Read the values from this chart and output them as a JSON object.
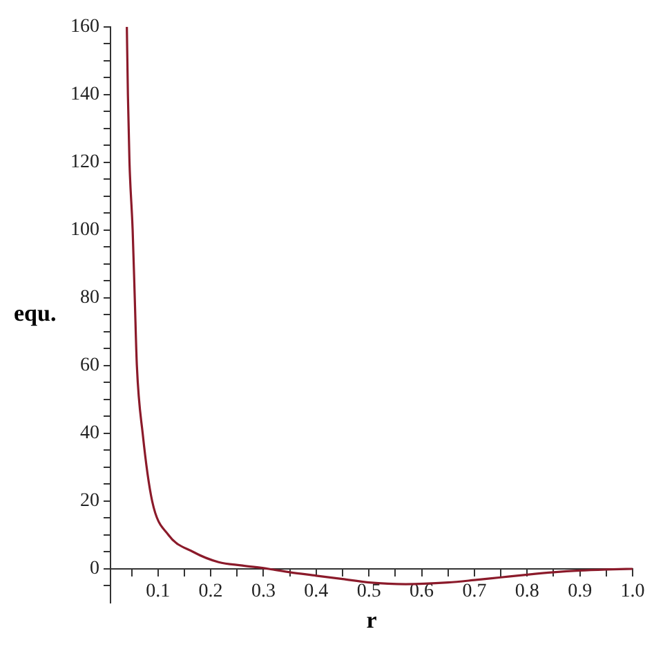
{
  "chart_data": {
    "type": "line",
    "xlabel": "r",
    "ylabel": "equ.",
    "x": [
      0.041,
      0.043,
      0.046,
      0.052,
      0.056,
      0.06,
      0.071,
      0.089,
      0.12,
      0.167,
      0.215,
      0.26,
      0.31,
      0.35,
      0.4,
      0.45,
      0.5,
      0.57,
      0.65,
      0.7,
      0.75,
      0.8,
      0.85,
      0.9,
      0.95,
      1.0
    ],
    "series": [
      {
        "color": "#8b1a2a",
        "values": [
          160,
          140,
          120,
          100,
          80,
          60,
          40,
          20,
          10,
          5,
          2,
          1,
          0,
          -1,
          -2,
          -3,
          -4,
          -4.5,
          -4,
          -3.3,
          -2.5,
          -1.7,
          -1,
          -0.5,
          -0.2,
          0
        ]
      }
    ],
    "xlim": [
      0.01,
      1.0
    ],
    "ylim": [
      -10,
      160
    ],
    "xticks": [
      0.1,
      0.2,
      0.3,
      0.4,
      0.5,
      0.6,
      0.7,
      0.8,
      0.9,
      {
        "value": 1.0,
        "label": "1.0"
      },
      {
        "value": 0.05,
        "label": null
      },
      {
        "value": 0.15,
        "label": null
      },
      {
        "value": 0.25,
        "label": null
      },
      {
        "value": 0.35,
        "label": null
      },
      {
        "value": 0.45,
        "label": null
      },
      {
        "value": 0.55,
        "label": null
      },
      {
        "value": 0.65,
        "label": null
      },
      {
        "value": 0.75,
        "label": null
      },
      {
        "value": 0.85,
        "label": null
      },
      {
        "value": 0.95,
        "label": null
      }
    ],
    "yticks": [
      0,
      20,
      40,
      60,
      80,
      100,
      120,
      140,
      160,
      {
        "value": -5,
        "label": null
      },
      {
        "value": 5,
        "label": null
      },
      {
        "value": 10,
        "label": null
      },
      {
        "value": 15,
        "label": null
      },
      {
        "value": 25,
        "label": null
      },
      {
        "value": 30,
        "label": null
      },
      {
        "value": 35,
        "label": null
      },
      {
        "value": 45,
        "label": null
      },
      {
        "value": 50,
        "label": null
      },
      {
        "value": 55,
        "label": null
      },
      {
        "value": 65,
        "label": null
      },
      {
        "value": 70,
        "label": null
      },
      {
        "value": 75,
        "label": null
      },
      {
        "value": 85,
        "label": null
      },
      {
        "value": 90,
        "label": null
      },
      {
        "value": 95,
        "label": null
      },
      {
        "value": 105,
        "label": null
      },
      {
        "value": 110,
        "label": null
      },
      {
        "value": 115,
        "label": null
      },
      {
        "value": 125,
        "label": null
      },
      {
        "value": 130,
        "label": null
      },
      {
        "value": 135,
        "label": null
      },
      {
        "value": 145,
        "label": null
      },
      {
        "value": 150,
        "label": null
      },
      {
        "value": 155,
        "label": null
      }
    ],
    "grid": false,
    "legend": false,
    "marker": "none",
    "line_style": "solid"
  }
}
